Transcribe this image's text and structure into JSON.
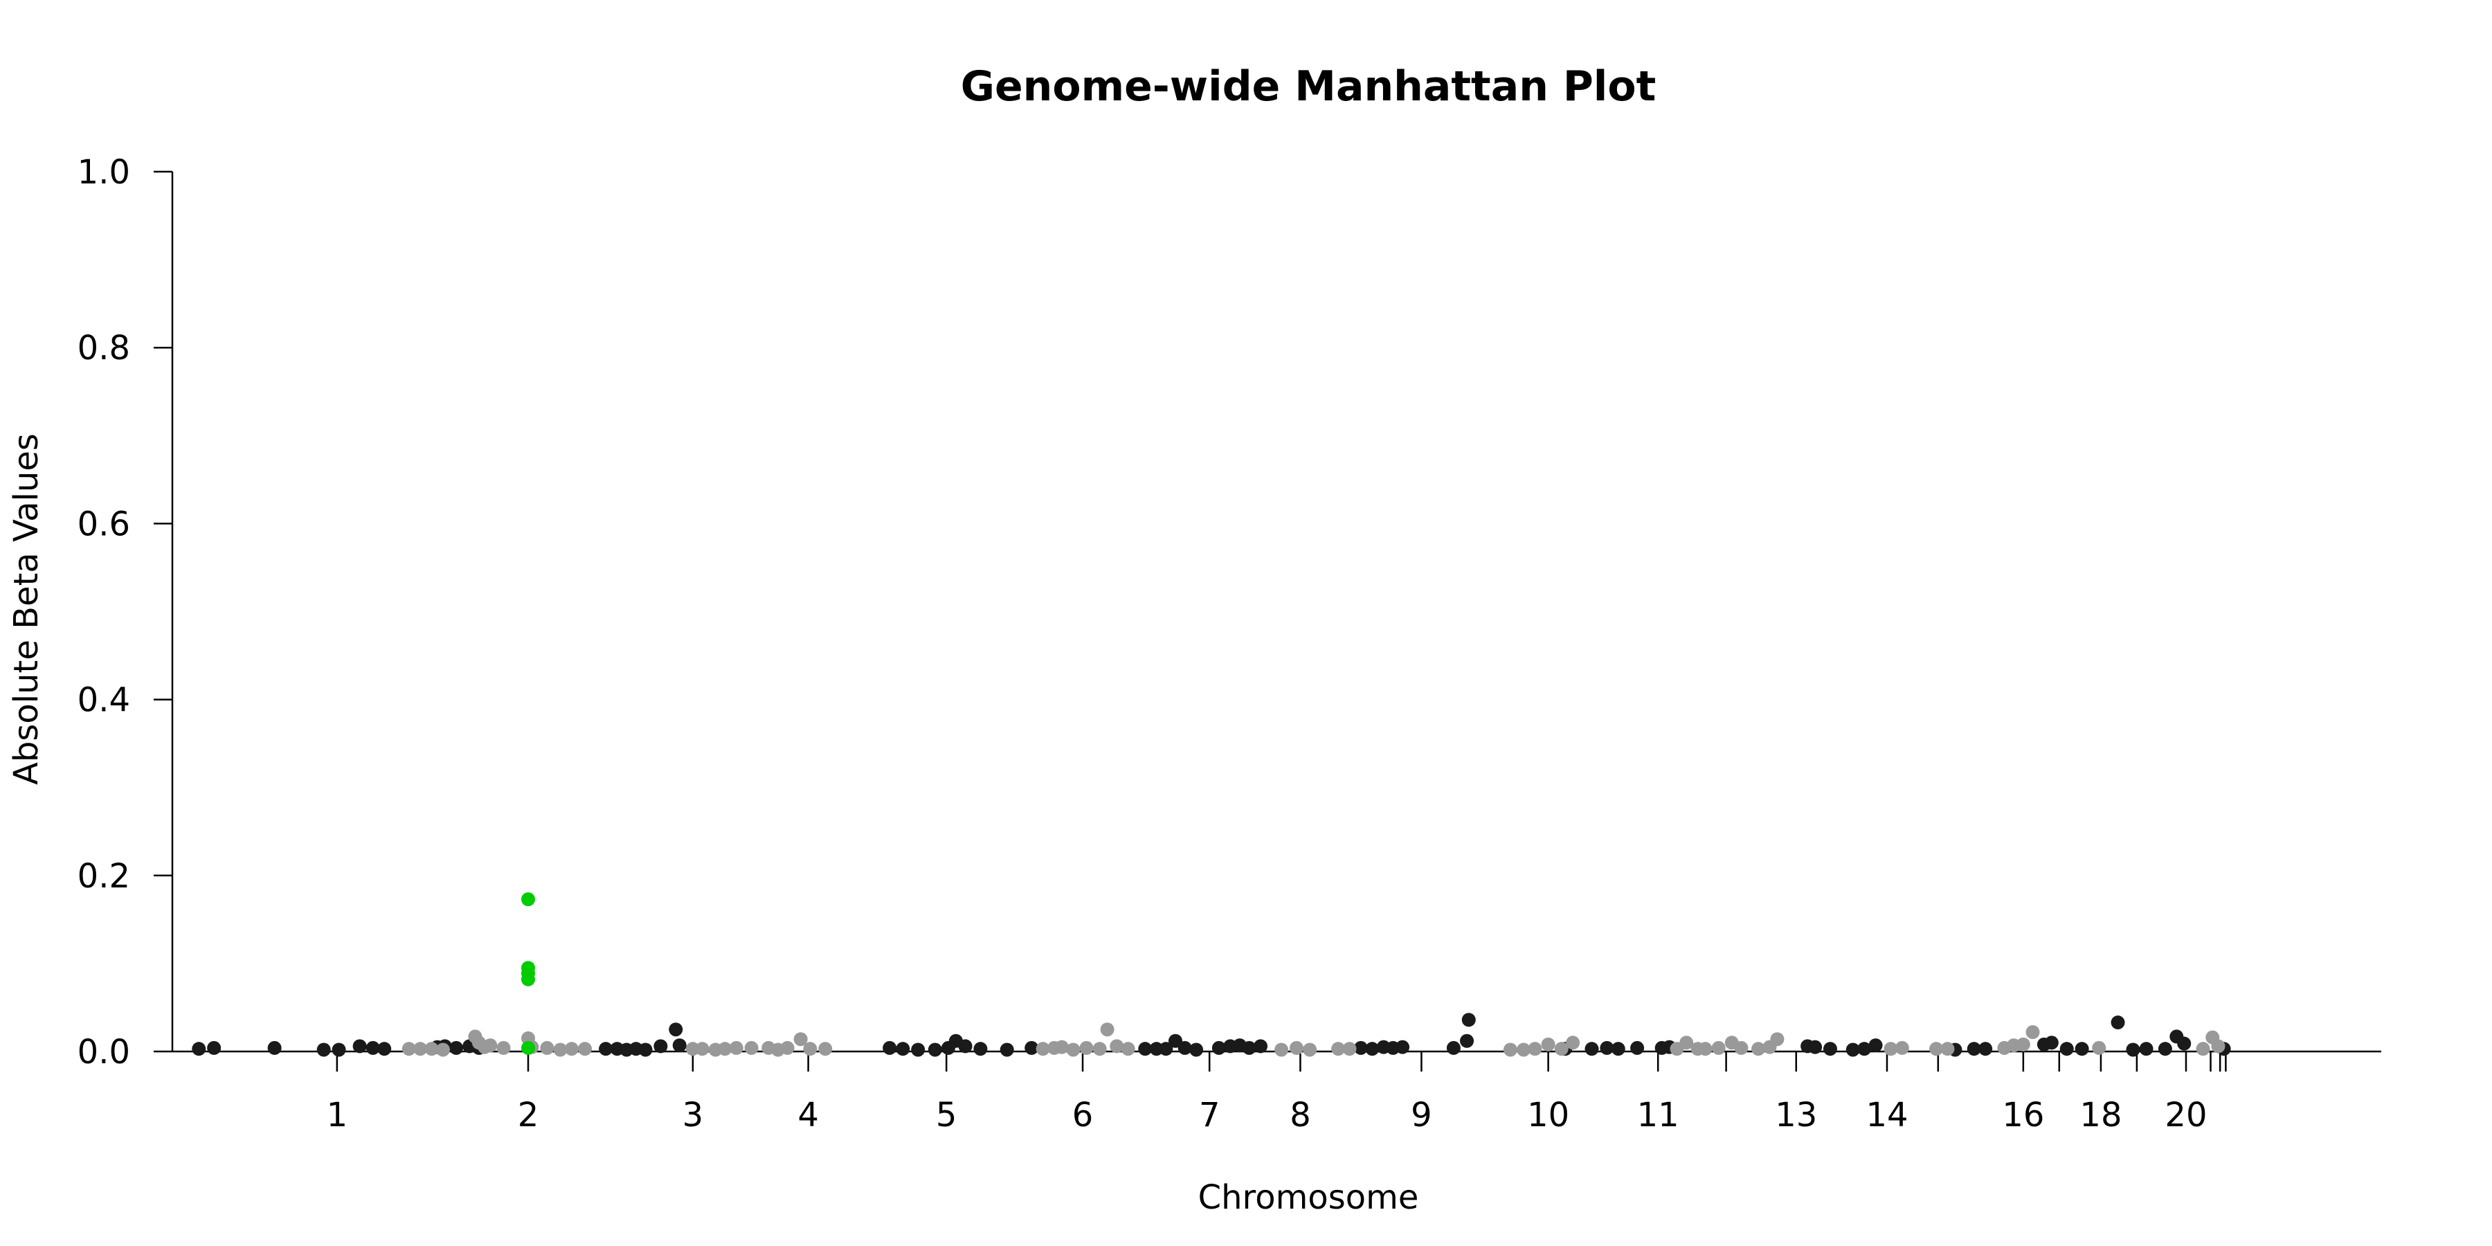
{
  "chart_data": {
    "type": "scatter",
    "title": "Genome-wide Manhattan Plot",
    "xlabel": "Chromosome",
    "ylabel": "Absolute Beta Values",
    "ylim": [
      0,
      1.0
    ],
    "yticks": [
      "0.0",
      "0.2",
      "0.4",
      "0.6",
      "0.8",
      "1.0"
    ],
    "grid": false,
    "legend": "none",
    "colors": {
      "dark": "#1a1a1a",
      "light": "#999999",
      "highlight": "#00cc00"
    },
    "chromosomes": [
      {
        "label": "1",
        "tick": 0.087
      },
      {
        "label": "2",
        "tick": 0.188
      },
      {
        "label": "3",
        "tick": 0.275
      },
      {
        "label": "4",
        "tick": 0.336
      },
      {
        "label": "5",
        "tick": 0.409
      },
      {
        "label": "6",
        "tick": 0.481
      },
      {
        "label": "7",
        "tick": 0.548
      },
      {
        "label": "8",
        "tick": 0.596
      },
      {
        "label": "9",
        "tick": 0.66
      },
      {
        "label": "10",
        "tick": 0.727
      },
      {
        "label": "11",
        "tick": 0.785
      },
      {
        "label": "",
        "tick": 0.821
      },
      {
        "label": "13",
        "tick": 0.858
      },
      {
        "label": "14",
        "tick": 0.906
      },
      {
        "label": "",
        "tick": 0.933
      },
      {
        "label": "16",
        "tick": 0.978
      },
      {
        "label": "",
        "tick": 0.997
      },
      {
        "label": "18",
        "tick": 1.019
      },
      {
        "label": "",
        "tick": 1.038
      },
      {
        "label": "20",
        "tick": 1.064
      },
      {
        "label": "",
        "tick": 1.077
      },
      {
        "label": "",
        "tick": 1.082
      },
      {
        "label": "",
        "tick": 1.085
      }
    ],
    "series": [
      {
        "color": "dark",
        "points": [
          [
            0.014,
            0.003
          ],
          [
            0.022,
            0.004
          ],
          [
            0.054,
            0.004
          ],
          [
            0.08,
            0.002
          ],
          [
            0.088,
            0.002
          ],
          [
            0.099,
            0.006
          ],
          [
            0.106,
            0.004
          ],
          [
            0.112,
            0.003
          ],
          [
            0.14,
            0.005
          ],
          [
            0.144,
            0.006
          ],
          [
            0.15,
            0.004
          ],
          [
            0.157,
            0.006
          ],
          [
            0.162,
            0.004
          ],
          [
            0.229,
            0.003
          ],
          [
            0.235,
            0.003
          ],
          [
            0.24,
            0.002
          ],
          [
            0.245,
            0.003
          ],
          [
            0.25,
            0.002
          ],
          [
            0.258,
            0.006
          ],
          [
            0.266,
            0.025
          ],
          [
            0.268,
            0.007
          ],
          [
            0.379,
            0.004
          ],
          [
            0.386,
            0.003
          ],
          [
            0.394,
            0.002
          ],
          [
            0.403,
            0.002
          ],
          [
            0.41,
            0.004
          ],
          [
            0.414,
            0.012
          ],
          [
            0.419,
            0.006
          ],
          [
            0.427,
            0.003
          ],
          [
            0.441,
            0.002
          ],
          [
            0.454,
            0.004
          ],
          [
            0.514,
            0.003
          ],
          [
            0.52,
            0.003
          ],
          [
            0.525,
            0.003
          ],
          [
            0.53,
            0.012
          ],
          [
            0.535,
            0.004
          ],
          [
            0.541,
            0.002
          ],
          [
            0.553,
            0.004
          ],
          [
            0.559,
            0.006
          ],
          [
            0.564,
            0.007
          ],
          [
            0.569,
            0.004
          ],
          [
            0.575,
            0.006
          ],
          [
            0.628,
            0.004
          ],
          [
            0.634,
            0.003
          ],
          [
            0.64,
            0.005
          ],
          [
            0.645,
            0.004
          ],
          [
            0.65,
            0.005
          ],
          [
            0.677,
            0.004
          ],
          [
            0.684,
            0.012
          ],
          [
            0.685,
            0.036
          ],
          [
            0.736,
            0.003
          ],
          [
            0.75,
            0.003
          ],
          [
            0.758,
            0.004
          ],
          [
            0.764,
            0.003
          ],
          [
            0.774,
            0.004
          ],
          [
            0.787,
            0.004
          ],
          [
            0.791,
            0.005
          ],
          [
            0.864,
            0.006
          ],
          [
            0.868,
            0.005
          ],
          [
            0.876,
            0.003
          ],
          [
            0.888,
            0.002
          ],
          [
            0.894,
            0.003
          ],
          [
            0.9,
            0.007
          ],
          [
            0.942,
            0.002
          ],
          [
            0.952,
            0.003
          ],
          [
            0.958,
            0.003
          ],
          [
            0.989,
            0.008
          ],
          [
            0.993,
            0.01
          ],
          [
            1.001,
            0.003
          ],
          [
            1.009,
            0.003
          ],
          [
            1.028,
            0.033
          ],
          [
            1.036,
            0.002
          ],
          [
            1.043,
            0.003
          ],
          [
            1.053,
            0.003
          ],
          [
            1.059,
            0.017
          ],
          [
            1.063,
            0.009
          ],
          [
            1.084,
            0.003
          ]
        ]
      },
      {
        "color": "light",
        "points": [
          [
            0.125,
            0.003
          ],
          [
            0.131,
            0.003
          ],
          [
            0.137,
            0.003
          ],
          [
            0.143,
            0.002
          ],
          [
            0.16,
            0.017
          ],
          [
            0.162,
            0.01
          ],
          [
            0.165,
            0.005
          ],
          [
            0.168,
            0.007
          ],
          [
            0.175,
            0.004
          ],
          [
            0.188,
            0.015
          ],
          [
            0.19,
            0.005
          ],
          [
            0.198,
            0.004
          ],
          [
            0.205,
            0.002
          ],
          [
            0.211,
            0.003
          ],
          [
            0.218,
            0.003
          ],
          [
            0.275,
            0.003
          ],
          [
            0.28,
            0.003
          ],
          [
            0.287,
            0.002
          ],
          [
            0.292,
            0.003
          ],
          [
            0.298,
            0.004
          ],
          [
            0.306,
            0.004
          ],
          [
            0.315,
            0.004
          ],
          [
            0.32,
            0.002
          ],
          [
            0.325,
            0.004
          ],
          [
            0.332,
            0.014
          ],
          [
            0.337,
            0.003
          ],
          [
            0.345,
            0.003
          ],
          [
            0.46,
            0.003
          ],
          [
            0.466,
            0.004
          ],
          [
            0.47,
            0.005
          ],
          [
            0.476,
            0.002
          ],
          [
            0.483,
            0.004
          ],
          [
            0.49,
            0.003
          ],
          [
            0.494,
            0.025
          ],
          [
            0.499,
            0.006
          ],
          [
            0.505,
            0.003
          ],
          [
            0.586,
            0.002
          ],
          [
            0.594,
            0.004
          ],
          [
            0.601,
            0.002
          ],
          [
            0.616,
            0.003
          ],
          [
            0.622,
            0.003
          ],
          [
            0.707,
            0.002
          ],
          [
            0.714,
            0.002
          ],
          [
            0.72,
            0.003
          ],
          [
            0.727,
            0.008
          ],
          [
            0.734,
            0.003
          ],
          [
            0.74,
            0.01
          ],
          [
            0.795,
            0.003
          ],
          [
            0.8,
            0.01
          ],
          [
            0.806,
            0.003
          ],
          [
            0.81,
            0.003
          ],
          [
            0.817,
            0.004
          ],
          [
            0.824,
            0.01
          ],
          [
            0.829,
            0.004
          ],
          [
            0.838,
            0.003
          ],
          [
            0.844,
            0.005
          ],
          [
            0.848,
            0.014
          ],
          [
            0.908,
            0.003
          ],
          [
            0.914,
            0.004
          ],
          [
            0.932,
            0.003
          ],
          [
            0.938,
            0.003
          ],
          [
            0.968,
            0.004
          ],
          [
            0.973,
            0.007
          ],
          [
            0.978,
            0.008
          ],
          [
            0.983,
            0.022
          ],
          [
            1.018,
            0.004
          ],
          [
            1.073,
            0.003
          ],
          [
            1.078,
            0.016
          ],
          [
            1.081,
            0.006
          ]
        ]
      },
      {
        "color": "highlight",
        "points": [
          [
            0.188,
            0.173
          ],
          [
            0.188,
            0.095
          ],
          [
            0.188,
            0.089
          ],
          [
            0.188,
            0.082
          ],
          [
            0.188,
            0.004
          ]
        ]
      }
    ]
  }
}
